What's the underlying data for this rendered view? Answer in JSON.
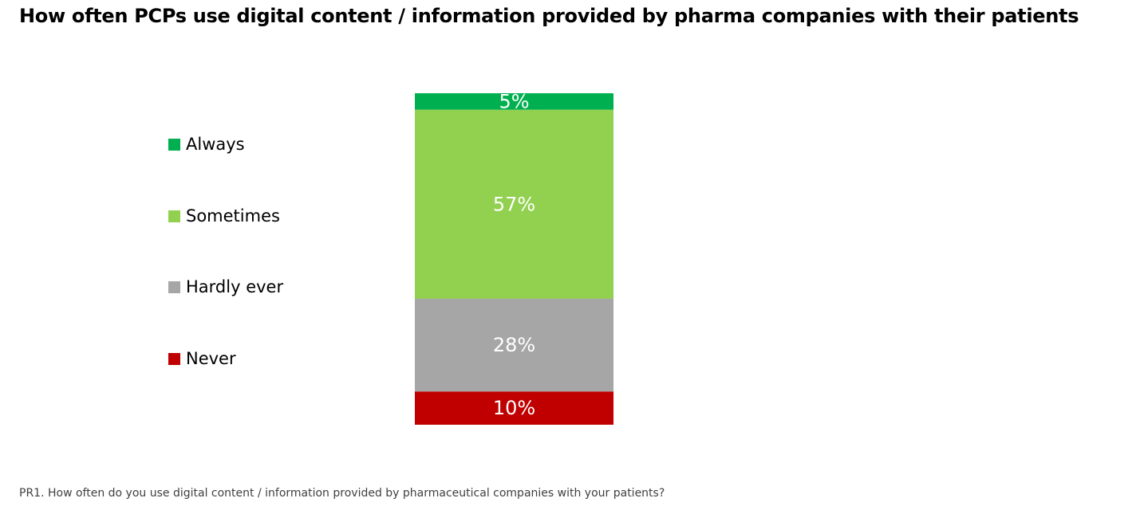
{
  "chart_data": {
    "type": "bar",
    "stacked": true,
    "title": "How often PCPs use digital content / information provided by pharma companies with their patients",
    "series": [
      {
        "name": "Always",
        "value": 5,
        "label": "5%",
        "color": "#00b050"
      },
      {
        "name": "Sometimes",
        "value": 57,
        "label": "57%",
        "color": "#92d050"
      },
      {
        "name": "Hardly ever",
        "value": 28,
        "label": "28%",
        "color": "#a6a6a6"
      },
      {
        "name": "Never",
        "value": 10,
        "label": "10%",
        "color": "#c00000"
      }
    ],
    "legend_position": "left",
    "grid": false
  },
  "footnote": "PR1. How often do you use digital content / information provided by pharmaceutical companies with your patients?"
}
